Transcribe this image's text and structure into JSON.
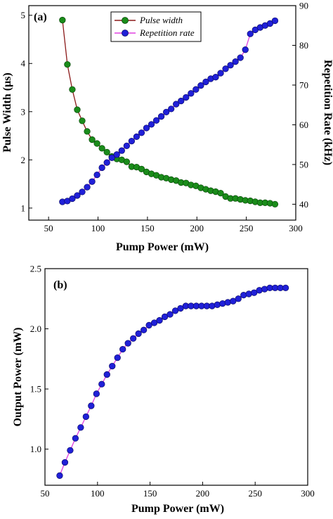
{
  "chart_data": [
    {
      "type": "line",
      "panel_label": "(a)",
      "xlabel": "Pump Power (mW)",
      "ylabel": "Pulse Width (μs)",
      "y2label": "Repetition Rate (kHz)",
      "xlim": [
        30,
        300
      ],
      "ylim": [
        0.75,
        5.2
      ],
      "y2lim": [
        36,
        90
      ],
      "xticks": [
        "50",
        "100",
        "150",
        "200",
        "250",
        "300"
      ],
      "yticks": [
        "1",
        "2",
        "3",
        "4",
        "5"
      ],
      "y2ticks": [
        "40",
        "50",
        "60",
        "70",
        "80",
        "90"
      ],
      "legend_position": "top-center",
      "series": [
        {
          "name": "Pulse width",
          "axis": "left",
          "marker_color": "#1a8c1a",
          "line_color": "#8b1a1a",
          "x": [
            64,
            69,
            74,
            79,
            84,
            89,
            94,
            99,
            104,
            109,
            114,
            119,
            124,
            129,
            134,
            139,
            144,
            149,
            154,
            159,
            164,
            169,
            174,
            179,
            184,
            189,
            194,
            199,
            204,
            209,
            214,
            219,
            224,
            229,
            234,
            239,
            244,
            249,
            254,
            259,
            264,
            269,
            274,
            279
          ],
          "values": [
            4.9,
            3.98,
            3.46,
            3.04,
            2.81,
            2.59,
            2.42,
            2.34,
            2.24,
            2.16,
            2.07,
            2.02,
            2.0,
            1.96,
            1.86,
            1.85,
            1.81,
            1.75,
            1.71,
            1.68,
            1.64,
            1.62,
            1.59,
            1.57,
            1.53,
            1.52,
            1.48,
            1.46,
            1.42,
            1.39,
            1.36,
            1.34,
            1.31,
            1.24,
            1.2,
            1.2,
            1.18,
            1.16,
            1.15,
            1.13,
            1.11,
            1.11,
            1.1,
            1.08
          ]
        },
        {
          "name": "Repetition rate",
          "axis": "right",
          "marker_color": "#2020d8",
          "line_color": "#e040e0",
          "x": [
            64,
            69,
            74,
            79,
            84,
            89,
            94,
            99,
            104,
            109,
            114,
            119,
            124,
            129,
            134,
            139,
            144,
            149,
            154,
            159,
            164,
            169,
            174,
            179,
            184,
            189,
            194,
            199,
            204,
            209,
            214,
            219,
            224,
            229,
            234,
            239,
            244,
            249,
            254,
            259,
            264,
            269,
            274,
            279
          ],
          "values": [
            40.6,
            40.8,
            41.4,
            42.2,
            43.1,
            44.3,
            45.7,
            47.4,
            49.2,
            50.5,
            51.7,
            52.5,
            53.5,
            54.7,
            55.9,
            57.0,
            58.0,
            59.2,
            60.1,
            61.1,
            62.1,
            63.2,
            64.0,
            65.2,
            66.0,
            66.9,
            67.9,
            68.9,
            69.9,
            70.8,
            71.6,
            72.0,
            73.0,
            74.1,
            75.0,
            75.9,
            76.9,
            78.9,
            82.9,
            83.9,
            84.5,
            85.0,
            85.5,
            86.2
          ]
        }
      ]
    },
    {
      "type": "line",
      "panel_label": "(b)",
      "xlabel": "Pump Power (mW)",
      "ylabel": "Output Power (mW)",
      "xlim": [
        50,
        300
      ],
      "ylim": [
        0.7,
        2.5
      ],
      "xticks": [
        "50",
        "100",
        "150",
        "200",
        "250",
        "300"
      ],
      "yticks": [
        "1.0",
        "1.5",
        "2.0",
        "2.5"
      ],
      "series": [
        {
          "marker_color": "#2020d8",
          "line_color": "#e040e0",
          "x": [
            64,
            69,
            74,
            79,
            84,
            89,
            94,
            99,
            104,
            109,
            114,
            119,
            124,
            129,
            134,
            139,
            144,
            149,
            154,
            159,
            164,
            169,
            174,
            179,
            184,
            189,
            194,
            199,
            204,
            209,
            214,
            219,
            224,
            229,
            234,
            239,
            244,
            249,
            254,
            259,
            264,
            269,
            274,
            279
          ],
          "values": [
            0.78,
            0.89,
            0.99,
            1.09,
            1.18,
            1.27,
            1.36,
            1.46,
            1.54,
            1.62,
            1.69,
            1.76,
            1.83,
            1.88,
            1.92,
            1.96,
            1.99,
            2.03,
            2.05,
            2.07,
            2.1,
            2.12,
            2.15,
            2.17,
            2.19,
            2.19,
            2.19,
            2.19,
            2.19,
            2.19,
            2.2,
            2.21,
            2.22,
            2.23,
            2.25,
            2.28,
            2.29,
            2.3,
            2.32,
            2.33,
            2.34,
            2.34,
            2.34,
            2.34
          ]
        }
      ]
    }
  ]
}
